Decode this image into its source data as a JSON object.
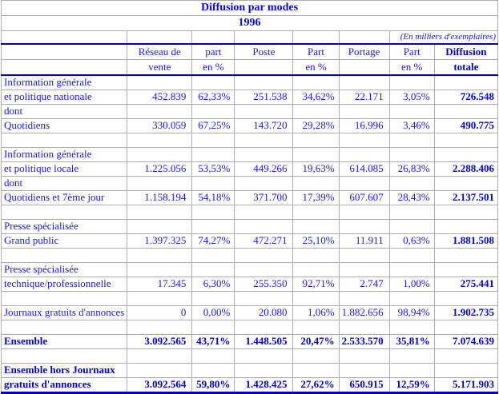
{
  "title": "Diffusion par modes",
  "year": "1996",
  "note": "(En milliers d'exemplaires)",
  "colors": {
    "text_blue": "#1c1ccd",
    "bold_navy": "#0404b4",
    "rule_blue": "#0000b0",
    "grid_gray": "#aeaeae"
  },
  "columns": [
    {
      "line1": "",
      "line2": ""
    },
    {
      "line1": "Réseau de",
      "line2": "vente"
    },
    {
      "line1": "part",
      "line2": "en %"
    },
    {
      "line1": "Poste",
      "line2": ""
    },
    {
      "line1": "Part",
      "line2": "en %"
    },
    {
      "line1": "Portage",
      "line2": ""
    },
    {
      "line1": "Part",
      "line2": "en %"
    },
    {
      "line1": "Diffusion",
      "line2": "totale"
    }
  ],
  "rows": [
    {
      "label": "Information générale",
      "values": [
        "",
        "",
        "",
        "",
        "",
        "",
        ""
      ]
    },
    {
      "label": "et politique nationale",
      "values": [
        "452.839",
        "62,33%",
        "251.538",
        "34,62%",
        "22.171",
        "3,05%",
        "726.548"
      ]
    },
    {
      "label": "dont",
      "values": [
        "",
        "",
        "",
        "",
        "",
        "",
        ""
      ]
    },
    {
      "label": "Quotidiens",
      "values": [
        "330.059",
        "67,25%",
        "143.720",
        "29,28%",
        "16.996",
        "3,46%",
        "490.775"
      ]
    },
    {
      "label": "",
      "values": [
        "",
        "",
        "",
        "",
        "",
        "",
        ""
      ]
    },
    {
      "label": "Information générale",
      "values": [
        "",
        "",
        "",
        "",
        "",
        "",
        ""
      ]
    },
    {
      "label": "et politique locale",
      "values": [
        "1.225.056",
        "53,53%",
        "449.266",
        "19,63%",
        "614.085",
        "26,83%",
        "2.288.406"
      ]
    },
    {
      "label": "dont",
      "values": [
        "",
        "",
        "",
        "",
        "",
        "",
        ""
      ]
    },
    {
      "label": "Quotidiens et 7ème jour",
      "values": [
        "1.158.194",
        "54,18%",
        "371.700",
        "17,39%",
        "607.607",
        "28,43%",
        "2.137.501"
      ]
    },
    {
      "label": "",
      "values": [
        "",
        "",
        "",
        "",
        "",
        "",
        ""
      ]
    },
    {
      "label": "Presse spécialisée",
      "values": [
        "",
        "",
        "",
        "",
        "",
        "",
        ""
      ]
    },
    {
      "label": "Grand public",
      "values": [
        "1.397.325",
        "74,27%",
        "472.271",
        "25,10%",
        "11.911",
        "0,63%",
        "1.881.508"
      ]
    },
    {
      "label": "",
      "values": [
        "",
        "",
        "",
        "",
        "",
        "",
        ""
      ]
    },
    {
      "label": "Presse spécialisée",
      "values": [
        "",
        "",
        "",
        "",
        "",
        "",
        ""
      ]
    },
    {
      "label": "technique/professionnelle",
      "values": [
        "17.345",
        "6,30%",
        "255.350",
        "92,71%",
        "2.747",
        "1,00%",
        "275.441"
      ]
    },
    {
      "label": "",
      "values": [
        "",
        "",
        "",
        "",
        "",
        "",
        ""
      ]
    },
    {
      "label": "Journaux gratuits d'annonces",
      "values": [
        "0",
        "0,00%",
        "20.080",
        "1,06%",
        "1.882.656",
        "98,94%",
        "1.902.735"
      ]
    },
    {
      "label": "",
      "values": [
        "",
        "",
        "",
        "",
        "",
        "",
        ""
      ]
    },
    {
      "label": "Ensemble",
      "bold": true,
      "values": [
        "3.092.565",
        "43,71%",
        "1.448.505",
        "20,47%",
        "2.533.570",
        "35,81%",
        "7.074.639"
      ]
    },
    {
      "label": "",
      "values": [
        "",
        "",
        "",
        "",
        "",
        "",
        ""
      ]
    },
    {
      "label": "Ensemble hors Journaux",
      "bold": true,
      "values": [
        "",
        "",
        "",
        "",
        "",
        "",
        ""
      ]
    },
    {
      "label": "gratuits d'annonces",
      "bold": true,
      "rule_thick": true,
      "values": [
        "3.092.564",
        "59,80%",
        "1.428.425",
        "27,62%",
        "650.915",
        "12,59%",
        "5.171.903"
      ]
    }
  ]
}
